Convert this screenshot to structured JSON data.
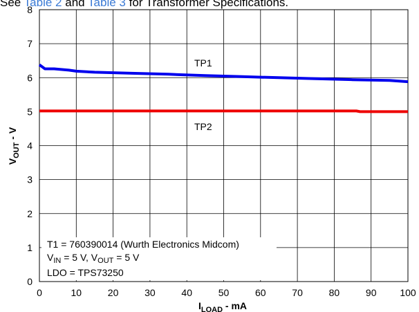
{
  "caption": {
    "see": "See",
    "link1": "Table 2",
    "and": "and",
    "link2": "Table 3",
    "rest": "for Transformer Specifications."
  },
  "chart_data": {
    "type": "line",
    "xlabel": {
      "main": "I",
      "sub": "LOAD",
      "suffix": " - mA"
    },
    "ylabel": {
      "main": "V",
      "sub": "OUT",
      "suffix": " - V"
    },
    "xlim": [
      0,
      100
    ],
    "ylim": [
      0,
      8
    ],
    "x_ticks": [
      "0",
      "10",
      "20",
      "30",
      "40",
      "50",
      "60",
      "70",
      "80",
      "90",
      "100"
    ],
    "y_ticks": [
      "0",
      "1",
      "2",
      "3",
      "4",
      "5",
      "6",
      "7",
      "8"
    ],
    "grid": true,
    "series": [
      {
        "name": "TP1",
        "color": "#0000ee",
        "x": [
          0,
          1.5,
          4,
          8,
          10,
          15,
          25,
          35,
          45,
          55,
          65,
          75,
          85,
          95,
          100
        ],
        "y": [
          6.38,
          6.26,
          6.26,
          6.22,
          6.19,
          6.16,
          6.13,
          6.1,
          6.06,
          6.03,
          6.0,
          5.97,
          5.94,
          5.92,
          5.88
        ]
      },
      {
        "name": "TP2",
        "color": "#ee0000",
        "x": [
          0,
          20,
          40,
          60,
          80,
          86,
          87,
          100
        ],
        "y": [
          5.02,
          5.02,
          5.02,
          5.02,
          5.02,
          5.02,
          5.0,
          5.0
        ]
      }
    ],
    "annotations": {
      "line1": "T1 = 760390014 (Wurth Electronics Midcom)",
      "line2": {
        "a": "V",
        "a_sub": "IN",
        "b": " = 5 V, V",
        "b_sub": "OUT",
        "c": " = 5 V"
      },
      "line3": "LDO = TPS73250"
    }
  }
}
